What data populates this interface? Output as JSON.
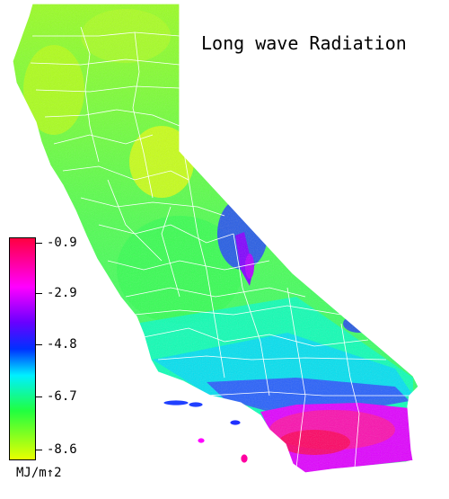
{
  "title": "Long wave Radiation",
  "legend": {
    "ticks": [
      "-0.9",
      "-2.9",
      "-4.8",
      "-6.7",
      "-8.6"
    ],
    "units": "MJ/m↑2"
  },
  "colors": {
    "high": "#ff0040",
    "magenta": "#ff00ff",
    "purple": "#6a00ff",
    "blue": "#0030ff",
    "cyan": "#00f0ff",
    "green": "#20ff40",
    "yellow": "#e8ff00",
    "boundary": "#ffffff"
  }
}
